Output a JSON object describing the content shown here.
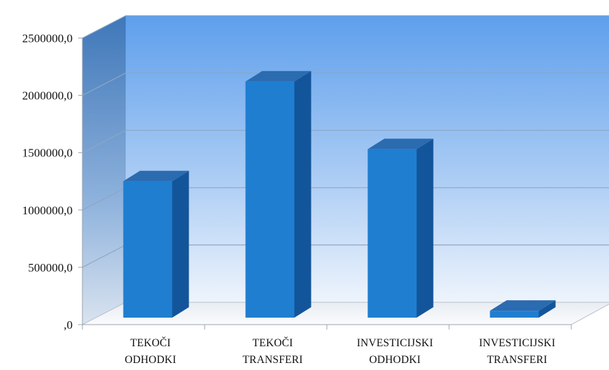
{
  "chart_data": {
    "type": "bar",
    "title": "",
    "xlabel": "",
    "ylabel": "",
    "ylim": [
      0,
      2500000
    ],
    "y_ticks": [
      0,
      500000,
      1000000,
      1500000,
      2000000,
      2500000
    ],
    "y_tick_labels": [
      ",0",
      "500000,0",
      "1000000,0",
      "1500000,0",
      "2000000,0",
      "2500000,0"
    ],
    "categories": [
      [
        "TEKOČI",
        "ODHODKI"
      ],
      [
        "TEKOČI",
        "TRANSFERI"
      ],
      [
        "INVESTICIJSKI",
        "ODHODKI"
      ],
      [
        "INVESTICIJSKI",
        "TRANSFERI"
      ]
    ],
    "values": [
      1190000,
      2060000,
      1470000,
      60000
    ],
    "grid": true,
    "legend": "none",
    "style": "3d-column",
    "colors": {
      "bar_front": "#1f7ed0",
      "bar_side": "#13559a",
      "bar_top": "#2b6bb0",
      "wall_top": "#6aa8ee",
      "wall_bottom": "#e6f0fb",
      "side_wall": "#4f84c4",
      "floor": "#f4f6f9"
    }
  }
}
